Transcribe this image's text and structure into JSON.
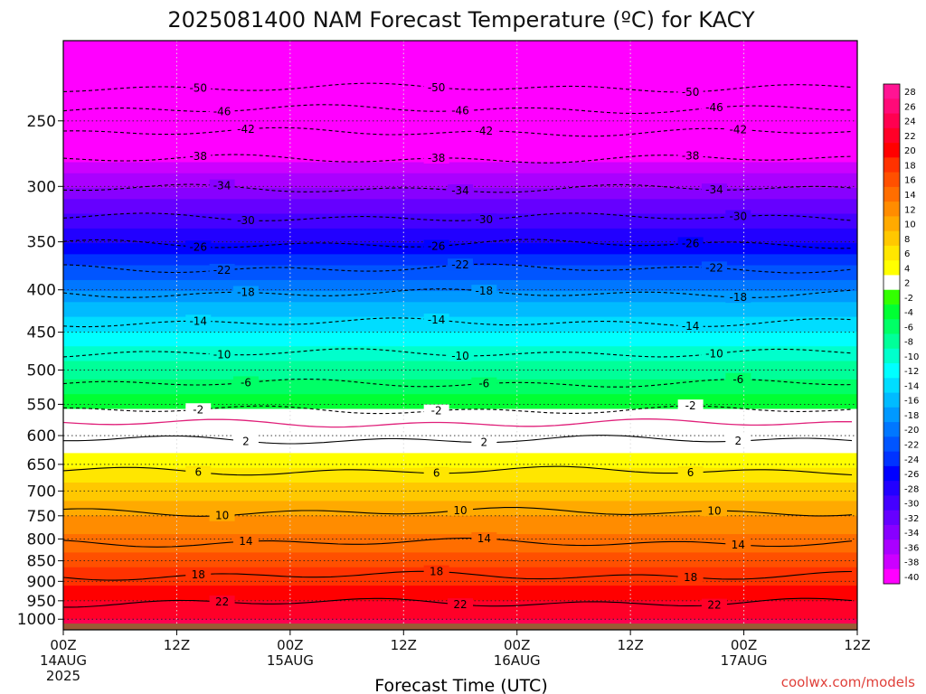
{
  "chart_data": {
    "type": "heatmap",
    "title": "2025081400 NAM Forecast Temperature (ºC) for KACY",
    "xlabel": "Forecast Time (UTC)",
    "ylabel": "",
    "credit": "coolwx.com/models",
    "y_scale": "log-pressure",
    "y_reversed": true,
    "ylim": [
      1030,
      200
    ],
    "yticks": [
      250,
      300,
      350,
      400,
      450,
      500,
      550,
      600,
      650,
      700,
      750,
      800,
      850,
      900,
      950,
      1000
    ],
    "ytick_labels": [
      "250",
      "300",
      "350",
      "400",
      "450",
      "500",
      "550",
      "600",
      "650",
      "700",
      "750",
      "800",
      "850",
      "900",
      "950",
      "1000"
    ],
    "xlim_hours": [
      0,
      84
    ],
    "xticks": [
      {
        "hour": 0,
        "line1": "00Z",
        "line2": "14AUG",
        "line3": "2025"
      },
      {
        "hour": 12,
        "line1": "12Z",
        "line2": "",
        "line3": ""
      },
      {
        "hour": 24,
        "line1": "00Z",
        "line2": "15AUG",
        "line3": ""
      },
      {
        "hour": 36,
        "line1": "12Z",
        "line2": "",
        "line3": ""
      },
      {
        "hour": 48,
        "line1": "00Z",
        "line2": "16AUG",
        "line3": ""
      },
      {
        "hour": 60,
        "line1": "12Z",
        "line2": "",
        "line3": ""
      },
      {
        "hour": 72,
        "line1": "00Z",
        "line2": "17AUG",
        "line3": ""
      },
      {
        "hour": 84,
        "line1": "12Z",
        "line2": "",
        "line3": ""
      }
    ],
    "grid": true,
    "ground_color": "#9b5a35",
    "ground_pressure": 1012,
    "colorbar": {
      "position": "right",
      "levels": [
        "28",
        "26",
        "24",
        "22",
        "20",
        "18",
        "16",
        "14",
        "12",
        "10",
        "8",
        "6",
        "4",
        "2",
        "-2",
        "-4",
        "-6",
        "-8",
        "-10",
        "-12",
        "-14",
        "-16",
        "-18",
        "-20",
        "-22",
        "-24",
        "-26",
        "-28",
        "-30",
        "-32",
        "-34",
        "-36",
        "-38",
        "-40"
      ],
      "colors": [
        "#ff1493",
        "#ff0a78",
        "#ff0050",
        "#ff0028",
        "#ff0000",
        "#ff3200",
        "#ff5000",
        "#ff6e00",
        "#ff8c00",
        "#ffaa00",
        "#ffc800",
        "#ffe600",
        "#ffff00",
        "#ffffff",
        "#33ff00",
        "#00ff33",
        "#00ff66",
        "#00ff99",
        "#00ffcc",
        "#00ffff",
        "#00ddff",
        "#00bbff",
        "#0099ff",
        "#0077ff",
        "#0055ff",
        "#0033ff",
        "#0000ff",
        "#2200ff",
        "#4400ff",
        "#6600ff",
        "#8800ff",
        "#aa00ff",
        "#cc00ff",
        "#ff00ff"
      ],
      "label_unit": "ºC"
    },
    "temperature_profile": [
      {
        "p": 200,
        "t": -56
      },
      {
        "p": 225,
        "t": -50
      },
      {
        "p": 250,
        "t": -45
      },
      {
        "p": 275,
        "t": -39
      },
      {
        "p": 300,
        "t": -34
      },
      {
        "p": 325,
        "t": -30
      },
      {
        "p": 350,
        "t": -26
      },
      {
        "p": 375,
        "t": -22
      },
      {
        "p": 400,
        "t": -18
      },
      {
        "p": 450,
        "t": -12
      },
      {
        "p": 500,
        "t": -7
      },
      {
        "p": 550,
        "t": -2.5
      },
      {
        "p": 575,
        "t": 0
      },
      {
        "p": 600,
        "t": 2
      },
      {
        "p": 650,
        "t": 5.5
      },
      {
        "p": 700,
        "t": 9
      },
      {
        "p": 750,
        "t": 12
      },
      {
        "p": 800,
        "t": 14.5
      },
      {
        "p": 850,
        "t": 17
      },
      {
        "p": 900,
        "t": 19.5
      },
      {
        "p": 950,
        "t": 22
      },
      {
        "p": 1000,
        "t": 24
      }
    ],
    "contours": [
      {
        "value": -50,
        "label": "-50",
        "p": 228,
        "dash": true
      },
      {
        "value": -46,
        "label": "-46",
        "p": 242,
        "dash": true
      },
      {
        "value": -42,
        "label": "-42",
        "p": 258,
        "dash": true
      },
      {
        "value": -38,
        "label": "-38",
        "p": 278,
        "dash": true
      },
      {
        "value": -34,
        "label": "-34",
        "p": 302,
        "dash": true
      },
      {
        "value": -30,
        "label": "-30",
        "p": 327,
        "dash": true
      },
      {
        "value": -26,
        "label": "-26",
        "p": 352,
        "dash": true
      },
      {
        "value": -22,
        "label": "-22",
        "p": 377,
        "dash": true
      },
      {
        "value": -18,
        "label": "-18",
        "p": 404,
        "dash": true
      },
      {
        "value": -14,
        "label": "-14",
        "p": 438,
        "dash": true
      },
      {
        "value": -10,
        "label": "-10",
        "p": 477,
        "dash": true
      },
      {
        "value": -6,
        "label": "-6",
        "p": 519,
        "dash": true
      },
      {
        "value": -2,
        "label": "-2",
        "p": 559,
        "dash": true
      },
      {
        "value": 0,
        "label": "",
        "p": 580,
        "dash": false,
        "magenta": true
      },
      {
        "value": 2,
        "label": "2",
        "p": 607,
        "dash": false
      },
      {
        "value": 6,
        "label": "6",
        "p": 662,
        "dash": false
      },
      {
        "value": 10,
        "label": "10",
        "p": 742,
        "dash": false
      },
      {
        "value": 14,
        "label": "14",
        "p": 808,
        "dash": false
      },
      {
        "value": 18,
        "label": "18",
        "p": 886,
        "dash": false
      },
      {
        "value": 22,
        "label": "22",
        "p": 955,
        "dash": false
      }
    ]
  }
}
